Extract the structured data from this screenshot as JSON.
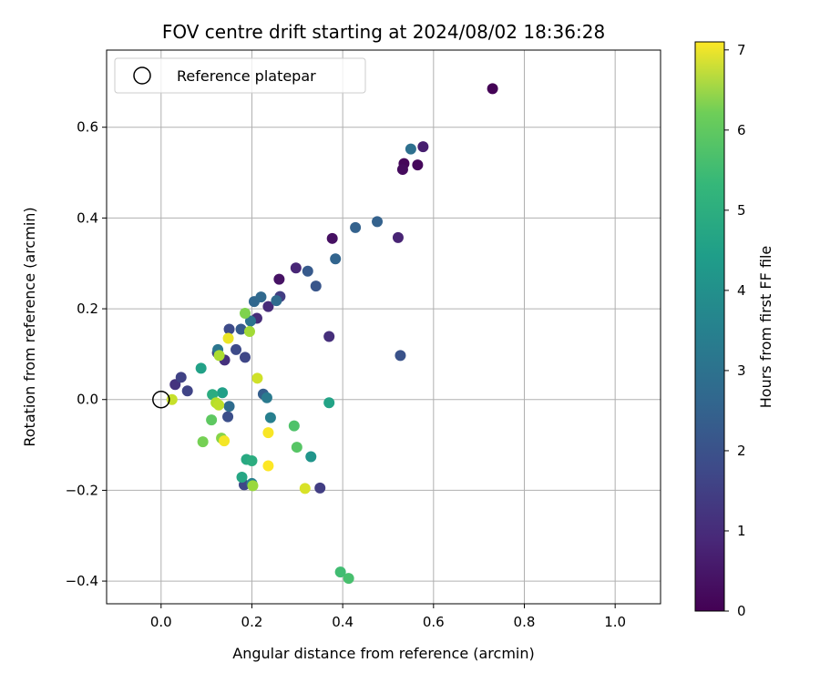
{
  "chart_data": {
    "type": "scatter",
    "title": "FOV centre drift starting at 2024/08/02 18:36:28",
    "xlabel": "Angular distance from reference (arcmin)",
    "ylabel": "Rotation from reference (arcmin)",
    "xlim": [
      -0.12,
      1.1
    ],
    "ylim": [
      -0.45,
      0.77
    ],
    "x_ticks": [
      "0.0",
      "0.2",
      "0.4",
      "0.6",
      "0.8",
      "1.0"
    ],
    "y_ticks": [
      "−0.4",
      "−0.2",
      "0.0",
      "0.2",
      "0.4",
      "0.6"
    ],
    "grid": true,
    "legend": {
      "placement": "top-left",
      "entries": [
        {
          "label": "Reference platepar",
          "marker": "open-circle"
        }
      ]
    },
    "reference_point": {
      "x": 0.0,
      "y": 0.0
    },
    "colorbar": {
      "label": "Hours from first FF file",
      "colormap": "viridis",
      "range": [
        0,
        7.1
      ],
      "ticks": [
        "0",
        "1",
        "2",
        "3",
        "4",
        "5",
        "6",
        "7"
      ]
    },
    "points": [
      {
        "x": 0.73,
        "y": 0.685,
        "h": 0.05
      },
      {
        "x": 0.535,
        "y": 0.52,
        "h": 0.1
      },
      {
        "x": 0.565,
        "y": 0.517,
        "h": 0.15
      },
      {
        "x": 0.532,
        "y": 0.507,
        "h": 0.2
      },
      {
        "x": 0.377,
        "y": 0.355,
        "h": 0.3
      },
      {
        "x": 0.26,
        "y": 0.265,
        "h": 0.35
      },
      {
        "x": 0.577,
        "y": 0.557,
        "h": 0.6
      },
      {
        "x": 0.522,
        "y": 0.357,
        "h": 0.7
      },
      {
        "x": 0.297,
        "y": 0.29,
        "h": 0.75
      },
      {
        "x": 0.236,
        "y": 0.205,
        "h": 0.85
      },
      {
        "x": 0.211,
        "y": 0.179,
        "h": 0.9
      },
      {
        "x": 0.37,
        "y": 0.139,
        "h": 0.95
      },
      {
        "x": 0.14,
        "y": 0.087,
        "h": 1.0
      },
      {
        "x": 0.031,
        "y": 0.033,
        "h": 1.05
      },
      {
        "x": 0.262,
        "y": 0.227,
        "h": 1.3
      },
      {
        "x": 0.35,
        "y": -0.195,
        "h": 1.3
      },
      {
        "x": 0.124,
        "y": 0.103,
        "h": 1.35
      },
      {
        "x": 0.044,
        "y": 0.049,
        "h": 1.4
      },
      {
        "x": 0.058,
        "y": 0.019,
        "h": 1.45
      },
      {
        "x": 0.185,
        "y": 0.093,
        "h": 1.5
      },
      {
        "x": 0.183,
        "y": -0.188,
        "h": 1.5
      },
      {
        "x": 0.15,
        "y": 0.155,
        "h": 1.6
      },
      {
        "x": 0.165,
        "y": 0.11,
        "h": 1.6
      },
      {
        "x": 0.147,
        "y": -0.038,
        "h": 1.7
      },
      {
        "x": 0.527,
        "y": 0.097,
        "h": 1.8
      },
      {
        "x": 0.341,
        "y": 0.25,
        "h": 1.9
      },
      {
        "x": 0.323,
        "y": 0.283,
        "h": 2.0
      },
      {
        "x": 0.176,
        "y": 0.155,
        "h": 2.0
      },
      {
        "x": 0.225,
        "y": 0.012,
        "h": 2.1
      },
      {
        "x": 0.476,
        "y": 0.392,
        "h": 2.2
      },
      {
        "x": 0.428,
        "y": 0.379,
        "h": 2.2
      },
      {
        "x": 0.384,
        "y": 0.31,
        "h": 2.3
      },
      {
        "x": 0.205,
        "y": 0.216,
        "h": 2.35
      },
      {
        "x": 0.22,
        "y": 0.226,
        "h": 2.4
      },
      {
        "x": 0.254,
        "y": 0.218,
        "h": 2.45
      },
      {
        "x": 0.15,
        "y": -0.015,
        "h": 2.5
      },
      {
        "x": 0.55,
        "y": 0.552,
        "h": 2.6
      },
      {
        "x": 0.197,
        "y": 0.173,
        "h": 2.7
      },
      {
        "x": 0.125,
        "y": 0.11,
        "h": 2.8
      },
      {
        "x": 0.233,
        "y": 0.004,
        "h": 2.9
      },
      {
        "x": 0.241,
        "y": -0.04,
        "h": 3.05
      },
      {
        "x": 0.2,
        "y": -0.185,
        "h": 3.1
      },
      {
        "x": 0.33,
        "y": -0.126,
        "h": 3.7
      },
      {
        "x": 0.135,
        "y": 0.015,
        "h": 4.0
      },
      {
        "x": 0.088,
        "y": 0.069,
        "h": 4.05
      },
      {
        "x": 0.37,
        "y": -0.007,
        "h": 4.1
      },
      {
        "x": 0.178,
        "y": -0.171,
        "h": 4.2
      },
      {
        "x": 0.188,
        "y": -0.132,
        "h": 4.3
      },
      {
        "x": 0.2,
        "y": -0.135,
        "h": 4.4
      },
      {
        "x": 0.113,
        "y": 0.011,
        "h": 4.4
      },
      {
        "x": 0.395,
        "y": -0.38,
        "h": 4.9
      },
      {
        "x": 0.413,
        "y": -0.394,
        "h": 5.0
      },
      {
        "x": 0.293,
        "y": -0.058,
        "h": 5.1
      },
      {
        "x": 0.299,
        "y": -0.105,
        "h": 5.2
      },
      {
        "x": 0.111,
        "y": -0.045,
        "h": 5.3
      },
      {
        "x": 0.092,
        "y": -0.093,
        "h": 5.6
      },
      {
        "x": 0.185,
        "y": 0.19,
        "h": 5.7
      },
      {
        "x": 0.133,
        "y": -0.085,
        "h": 5.8
      },
      {
        "x": 0.202,
        "y": -0.19,
        "h": 6.0
      },
      {
        "x": 0.195,
        "y": 0.15,
        "h": 6.1
      },
      {
        "x": 0.128,
        "y": 0.097,
        "h": 6.2
      },
      {
        "x": 0.121,
        "y": -0.007,
        "h": 6.3
      },
      {
        "x": 0.127,
        "y": -0.012,
        "h": 6.4
      },
      {
        "x": 0.024,
        "y": 0.0,
        "h": 6.5
      },
      {
        "x": 0.212,
        "y": 0.047,
        "h": 6.6
      },
      {
        "x": 0.317,
        "y": -0.196,
        "h": 6.7
      },
      {
        "x": 0.148,
        "y": 0.135,
        "h": 6.9
      },
      {
        "x": 0.139,
        "y": -0.091,
        "h": 7.0
      },
      {
        "x": 0.236,
        "y": -0.073,
        "h": 7.05
      },
      {
        "x": 0.236,
        "y": -0.146,
        "h": 7.1
      }
    ]
  }
}
